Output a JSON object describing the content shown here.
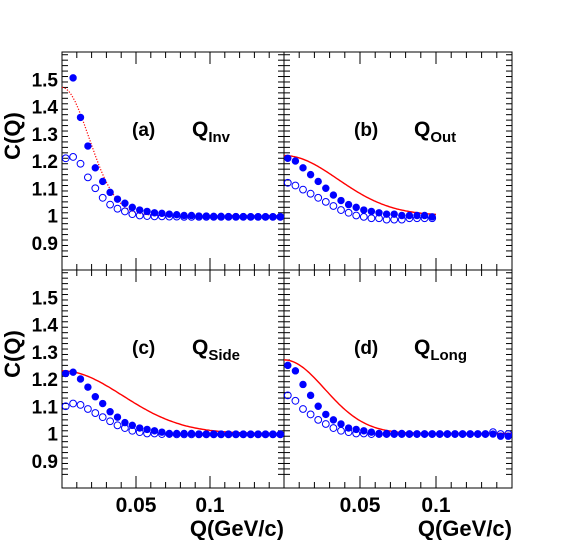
{
  "chart_data": {
    "type": "scatter",
    "ylabel": "C(Q)",
    "xlabel": "Q(GeV/c)",
    "ylim": [
      0.8,
      1.6
    ],
    "y_ticks": [
      "0.9",
      "1",
      "1.1",
      "1.2",
      "1.3",
      "1.4",
      "1.5"
    ],
    "x_ticks": [
      "0.05",
      "0.1"
    ],
    "grid": false,
    "colors": {
      "points": "#0000ff",
      "fit": "#ff0000",
      "frame": "#000000"
    },
    "panels": [
      {
        "tag": "(a)",
        "q_main": "Q",
        "q_sub": "Inv",
        "xlim": [
          0.0,
          0.15
        ],
        "filled": {
          "x": [
            0.0075,
            0.0125,
            0.0175,
            0.0225,
            0.0275,
            0.0325,
            0.0375,
            0.0425,
            0.0475,
            0.0525,
            0.0575,
            0.0625,
            0.0675,
            0.0725,
            0.0775,
            0.0825,
            0.0875,
            0.0925,
            0.0975,
            0.1025,
            0.1075,
            0.1125,
            0.1175,
            0.1225,
            0.1275,
            0.1325,
            0.1375,
            0.1425,
            0.1475
          ],
          "y": [
            1.505,
            1.36,
            1.255,
            1.175,
            1.125,
            1.085,
            1.06,
            1.045,
            1.03,
            1.02,
            1.015,
            1.01,
            1.008,
            1.005,
            1.003,
            1.0,
            1.0,
            0.998,
            0.998,
            0.997,
            0.997,
            0.996,
            0.996,
            0.996,
            0.995,
            0.995,
            0.995,
            0.995,
            0.995
          ]
        },
        "open": {
          "x": [
            0.0025,
            0.0075,
            0.0125,
            0.0175,
            0.0225,
            0.0275,
            0.0325,
            0.0375,
            0.0425,
            0.0475,
            0.0525,
            0.0575,
            0.0625,
            0.0675,
            0.0725,
            0.0775,
            0.0825,
            0.0875,
            0.0925,
            0.0975,
            0.1025,
            0.1075,
            0.1125,
            0.1175,
            0.1225,
            0.1275,
            0.1325,
            0.1375,
            0.1425,
            0.1475
          ],
          "y": [
            1.21,
            1.215,
            1.19,
            1.14,
            1.1,
            1.065,
            1.04,
            1.025,
            1.015,
            1.005,
            1.0,
            0.998,
            0.997,
            0.997,
            0.996,
            0.996,
            0.995,
            0.995,
            0.995,
            0.995,
            0.995,
            0.995,
            0.995,
            0.995,
            0.995,
            0.995,
            0.995,
            0.995,
            0.995,
            0.995
          ]
        },
        "fit": {
          "lambda": 0.47,
          "R2": 1500,
          "xmin": 0.0,
          "xmax": 0.15,
          "dotted": true
        }
      },
      {
        "tag": "(b)",
        "q_main": "Q",
        "q_sub": "Out",
        "xlim": [
          0.0,
          0.15
        ],
        "filled": {
          "x": [
            0.0025,
            0.0075,
            0.0125,
            0.0175,
            0.0225,
            0.0275,
            0.0325,
            0.0375,
            0.0425,
            0.0475,
            0.0525,
            0.0575,
            0.0625,
            0.0675,
            0.0725,
            0.0775,
            0.0825,
            0.0875,
            0.0925,
            0.0975
          ],
          "y": [
            1.21,
            1.2,
            1.175,
            1.15,
            1.125,
            1.1,
            1.075,
            1.055,
            1.04,
            1.03,
            1.02,
            1.015,
            1.01,
            1.005,
            1.005,
            1.0,
            1.0,
            1.0,
            1.0,
            0.995
          ]
        },
        "open": {
          "x": [
            0.0025,
            0.0075,
            0.0125,
            0.0175,
            0.0225,
            0.0275,
            0.0325,
            0.0375,
            0.0425,
            0.0475,
            0.0525,
            0.0575,
            0.0625,
            0.0675,
            0.0725,
            0.0775,
            0.0825,
            0.0875,
            0.0925,
            0.0975
          ],
          "y": [
            1.12,
            1.11,
            1.095,
            1.08,
            1.065,
            1.05,
            1.035,
            1.02,
            1.01,
            1.0,
            0.995,
            0.99,
            0.99,
            0.985,
            0.985,
            0.985,
            0.99,
            0.99,
            0.99,
            0.99
          ]
        },
        "fit": {
          "lambda": 0.22,
          "R2": 400,
          "xmin": 0.0,
          "xmax": 0.1,
          "dotted": false
        }
      },
      {
        "tag": "(c)",
        "q_main": "Q",
        "q_sub": "Side",
        "xlim": [
          0.0,
          0.15
        ],
        "filled": {
          "x": [
            0.0025,
            0.0075,
            0.0125,
            0.0175,
            0.0225,
            0.0275,
            0.0325,
            0.0375,
            0.0425,
            0.0475,
            0.0525,
            0.0575,
            0.0625,
            0.0675,
            0.0725,
            0.0775,
            0.0825,
            0.0875,
            0.0925,
            0.0975,
            0.1025,
            0.1075,
            0.1125,
            0.1175,
            0.1225,
            0.1275,
            0.1325,
            0.1375,
            0.1425,
            0.1475
          ],
          "y": [
            1.22,
            1.225,
            1.2,
            1.17,
            1.135,
            1.11,
            1.08,
            1.06,
            1.04,
            1.03,
            1.02,
            1.015,
            1.01,
            1.005,
            1.0,
            1.0,
            1.0,
            1.0,
            0.998,
            0.998,
            0.998,
            0.997,
            0.997,
            0.997,
            0.997,
            0.997,
            0.997,
            0.997,
            0.997,
            0.997
          ]
        },
        "open": {
          "x": [
            0.0025,
            0.0075,
            0.0125,
            0.0175,
            0.0225,
            0.0275,
            0.0325,
            0.0375,
            0.0425,
            0.0475,
            0.0525,
            0.0575,
            0.0625,
            0.0675,
            0.0725,
            0.0775,
            0.0825,
            0.0875,
            0.0925,
            0.0975,
            0.1025,
            0.1075,
            0.1125,
            0.1175,
            0.1225,
            0.1275,
            0.1325,
            0.1375,
            0.1425,
            0.1475
          ],
          "y": [
            1.1,
            1.11,
            1.105,
            1.09,
            1.075,
            1.06,
            1.045,
            1.03,
            1.02,
            1.01,
            1.005,
            1.0,
            1.0,
            0.998,
            0.998,
            0.997,
            0.997,
            0.997,
            0.997,
            0.997,
            0.997,
            0.997,
            0.997,
            0.997,
            0.997,
            0.997,
            0.997,
            0.997,
            0.997,
            0.997
          ]
        },
        "fit": {
          "lambda": 0.23,
          "R2": 300,
          "xmin": 0.0,
          "xmax": 0.15,
          "dotted": false
        }
      },
      {
        "tag": "(d)",
        "q_main": "Q",
        "q_sub": "Long",
        "xlim": [
          0.0,
          0.15
        ],
        "filled": {
          "x": [
            0.0025,
            0.0075,
            0.0125,
            0.0175,
            0.0225,
            0.0275,
            0.0325,
            0.0375,
            0.0425,
            0.0475,
            0.0525,
            0.0575,
            0.0625,
            0.0675,
            0.0725,
            0.0775,
            0.0825,
            0.0875,
            0.0925,
            0.0975,
            0.1025,
            0.1075,
            0.1125,
            0.1175,
            0.1225,
            0.1275,
            0.1325,
            0.1375,
            0.1425,
            0.1475
          ],
          "y": [
            1.25,
            1.23,
            1.18,
            1.14,
            1.1,
            1.07,
            1.05,
            1.035,
            1.02,
            1.015,
            1.01,
            1.005,
            1.0,
            1.0,
            1.0,
            1.0,
            0.998,
            0.998,
            0.998,
            0.998,
            0.998,
            0.998,
            0.998,
            0.998,
            0.998,
            0.998,
            0.998,
            0.998,
            0.99,
            0.99
          ]
        },
        "open": {
          "x": [
            0.0025,
            0.0075,
            0.0125,
            0.0175,
            0.0225,
            0.0275,
            0.0325,
            0.0375,
            0.0425,
            0.0475,
            0.0525,
            0.0575,
            0.0625,
            0.0675,
            0.0725,
            0.0775,
            0.0825,
            0.0875,
            0.0925,
            0.0975,
            0.1025,
            0.1075,
            0.1125,
            0.1175,
            0.1225,
            0.1275,
            0.1325,
            0.1375,
            0.1425,
            0.1475
          ],
          "y": [
            1.14,
            1.12,
            1.09,
            1.07,
            1.05,
            1.035,
            1.02,
            1.01,
            1.005,
            1.0,
            1.0,
            0.998,
            0.998,
            0.998,
            0.998,
            0.998,
            0.998,
            0.998,
            0.998,
            0.998,
            0.998,
            0.998,
            0.998,
            0.998,
            0.998,
            0.998,
            0.998,
            1.005,
            0.998,
            0.998
          ]
        },
        "fit": {
          "lambda": 0.27,
          "R2": 700,
          "xmin": 0.0,
          "xmax": 0.15,
          "dotted": false
        }
      }
    ]
  }
}
